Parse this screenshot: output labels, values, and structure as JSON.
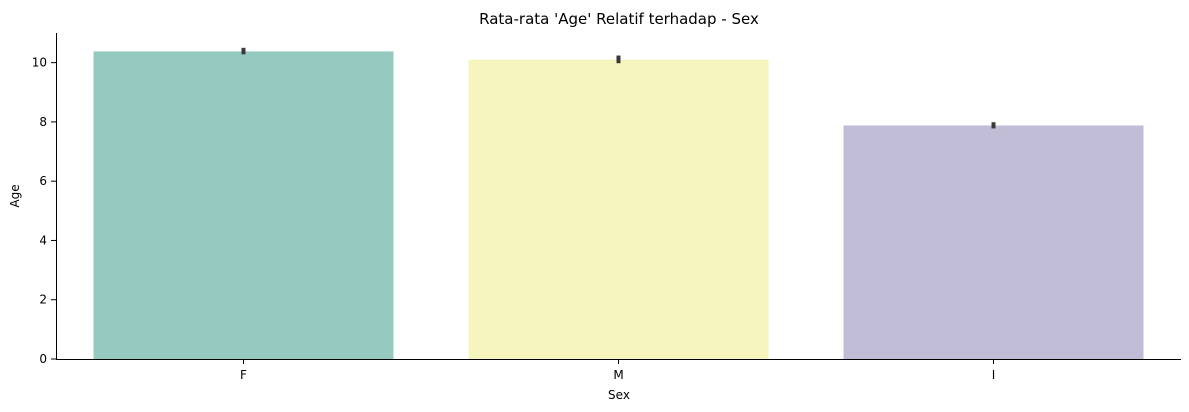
{
  "chart_data": {
    "type": "bar",
    "title": "Rata-rata 'Age' Relatif terhadap - Sex",
    "xlabel": "Sex",
    "ylabel": "Age",
    "categories": [
      "F",
      "M",
      "I"
    ],
    "values": [
      10.38,
      10.1,
      7.88
    ],
    "error_low": [
      10.28,
      9.98,
      7.78
    ],
    "error_high": [
      10.5,
      10.24,
      7.99
    ],
    "ylim": [
      0,
      11
    ],
    "yticks": [
      "0",
      "2",
      "4",
      "6",
      "8",
      "10"
    ],
    "colors": [
      "#96c9c0",
      "#f5f5bd",
      "#c1bdd6"
    ],
    "grid": false,
    "legend": "none"
  }
}
